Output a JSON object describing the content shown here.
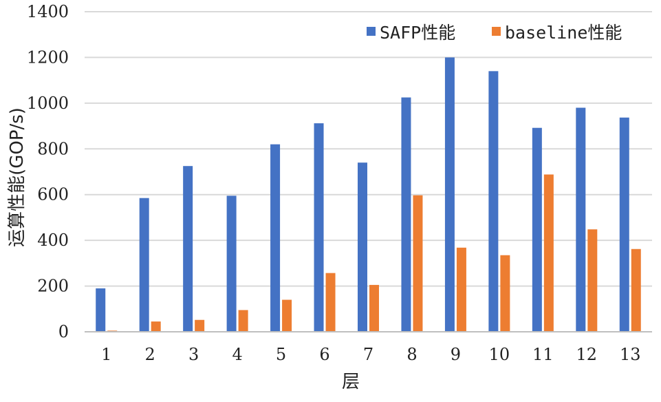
{
  "chart_data": {
    "type": "bar",
    "title": "",
    "xlabel": "层",
    "ylabel": "运算性能(GOP/s)",
    "ylim": [
      0,
      1400
    ],
    "yticks": [
      0,
      200,
      400,
      600,
      800,
      1000,
      1200,
      1400
    ],
    "grid": true,
    "legend_position": "top-right",
    "categories": [
      "1",
      "2",
      "3",
      "4",
      "5",
      "6",
      "7",
      "8",
      "9",
      "10",
      "11",
      "12",
      "13"
    ],
    "series": [
      {
        "name": "SAFP性能",
        "color": "#4472C4",
        "values": [
          190,
          585,
          725,
          595,
          820,
          912,
          740,
          1025,
          1200,
          1140,
          892,
          980,
          937
        ]
      },
      {
        "name": "baseline性能",
        "color": "#ED7D31",
        "values": [
          5,
          45,
          52,
          95,
          140,
          257,
          205,
          597,
          368,
          335,
          688,
          448,
          362
        ]
      }
    ]
  }
}
